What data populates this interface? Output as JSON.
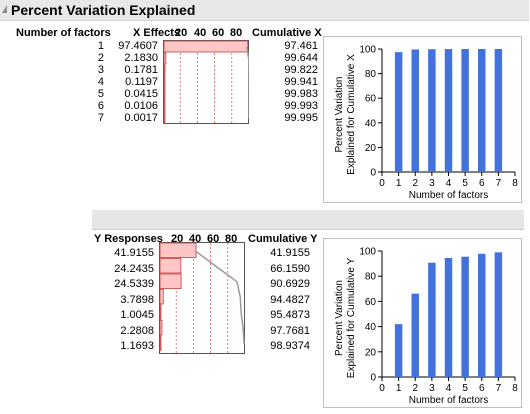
{
  "header": {
    "title": "Percent Variation Explained"
  },
  "x_table": {
    "col_factors": "Number of factors",
    "col_effects": "X Effects",
    "col_cumulative": "Cumulative X",
    "scale_ticks": [
      "20",
      "40",
      "60",
      "80"
    ],
    "rows": [
      {
        "factor": "1",
        "effect": "97.4607",
        "cumulative": "97.461",
        "effect_value": 97.4607
      },
      {
        "factor": "2",
        "effect": "2.1830",
        "cumulative": "99.644",
        "effect_value": 2.183
      },
      {
        "factor": "3",
        "effect": "0.1781",
        "cumulative": "99.822",
        "effect_value": 0.1781
      },
      {
        "factor": "4",
        "effect": "0.1197",
        "cumulative": "99.941",
        "effect_value": 0.1197
      },
      {
        "factor": "5",
        "effect": "0.0415",
        "cumulative": "99.983",
        "effect_value": 0.0415
      },
      {
        "factor": "6",
        "effect": "0.0106",
        "cumulative": "99.993",
        "effect_value": 0.0106
      },
      {
        "factor": "7",
        "effect": "0.0017",
        "cumulative": "99.995",
        "effect_value": 0.0017
      }
    ]
  },
  "y_table": {
    "col_responses": "Y Responses",
    "col_cumulative": "Cumulative Y",
    "scale_ticks": [
      "20",
      "40",
      "60",
      "80"
    ],
    "rows": [
      {
        "effect": "41.9155",
        "cumulative": "41.9155",
        "effect_value": 41.9155
      },
      {
        "effect": "24.2435",
        "cumulative": "66.1590",
        "effect_value": 24.2435
      },
      {
        "effect": "24.5339",
        "cumulative": "90.6929",
        "effect_value": 24.5339
      },
      {
        "effect": "3.7898",
        "cumulative": "94.4827",
        "effect_value": 3.7898
      },
      {
        "effect": "1.0045",
        "cumulative": "95.4873",
        "effect_value": 1.0045
      },
      {
        "effect": "2.2808",
        "cumulative": "97.7681",
        "effect_value": 2.2808
      },
      {
        "effect": "1.1693",
        "cumulative": "98.9374",
        "effect_value": 1.1693
      }
    ]
  },
  "colors": {
    "bar_fill": "#ffc6c6",
    "bar_stroke": "#c04040",
    "chart_bar": "#4472dc",
    "line": "#9a9a9a",
    "grid": "#e04040"
  },
  "chart_data": [
    {
      "type": "bar",
      "ylabel": "Percent Variation Explained for Cumulative X",
      "xlabel": "Number of factors",
      "x": [
        1,
        2,
        3,
        4,
        5,
        6,
        7
      ],
      "values": [
        97.461,
        99.644,
        99.822,
        99.941,
        99.983,
        99.993,
        99.995
      ],
      "xlim": [
        0,
        8
      ],
      "ylim": [
        0,
        100
      ],
      "xticks": [
        "0",
        "1",
        "2",
        "3",
        "4",
        "5",
        "6",
        "7",
        "8"
      ],
      "yticks": [
        "0",
        "20",
        "40",
        "60",
        "80",
        "100"
      ],
      "grid": false
    },
    {
      "type": "bar",
      "ylabel": "Percent Variation Explained for Cumulative Y",
      "xlabel": "Number of factors",
      "x": [
        1,
        2,
        3,
        4,
        5,
        6,
        7
      ],
      "values": [
        41.9155,
        66.159,
        90.6929,
        94.4827,
        95.4873,
        97.7681,
        98.9374
      ],
      "xlim": [
        0,
        8
      ],
      "ylim": [
        0,
        100
      ],
      "xticks": [
        "0",
        "1",
        "2",
        "3",
        "4",
        "5",
        "6",
        "7",
        "8"
      ],
      "yticks": [
        "0",
        "20",
        "40",
        "60",
        "80",
        "100"
      ],
      "grid": false
    }
  ]
}
